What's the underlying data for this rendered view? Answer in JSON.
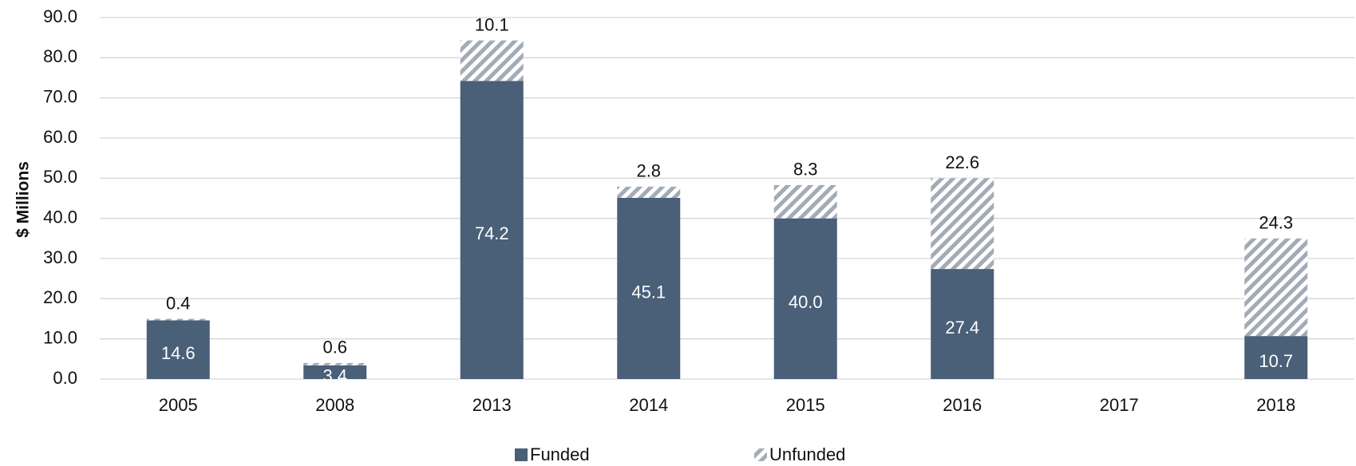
{
  "chart_data": {
    "type": "stacked_bar",
    "y_label": "$ Millions",
    "categories": [
      "2005",
      "2008",
      "2013",
      "2014",
      "2015",
      "2016",
      "2017",
      "2018"
    ],
    "series": [
      {
        "name": "Funded",
        "color": "#4a5f78",
        "values": [
          14.6,
          3.4,
          74.2,
          45.1,
          40.0,
          27.4,
          null,
          10.7
        ],
        "value_labels": [
          "14.6",
          "3.4",
          "74.2",
          "45.1",
          "40.0",
          "27.4",
          null,
          "10.7"
        ]
      },
      {
        "name": "Unfunded",
        "color": "#a3abb6",
        "values": [
          0.4,
          0.6,
          10.1,
          2.8,
          8.3,
          22.6,
          null,
          24.3
        ],
        "value_labels": [
          "0.4",
          "0.6",
          "10.1",
          "2.8",
          "8.3",
          "22.6",
          null,
          "24.3"
        ]
      }
    ],
    "ylim": [
      0,
      90
    ],
    "yticks": [
      {
        "value": 0,
        "label": "0.0"
      },
      {
        "value": 10,
        "label": "10.0"
      },
      {
        "value": 20,
        "label": "20.0"
      },
      {
        "value": 30,
        "label": "30.0"
      },
      {
        "value": 40,
        "label": "40.0"
      },
      {
        "value": 50,
        "label": "50.0"
      },
      {
        "value": 60,
        "label": "60.0"
      },
      {
        "value": 70,
        "label": "70.0"
      },
      {
        "value": 80,
        "label": "80.0"
      },
      {
        "value": 90,
        "label": "90.0"
      }
    ],
    "grid": true
  }
}
